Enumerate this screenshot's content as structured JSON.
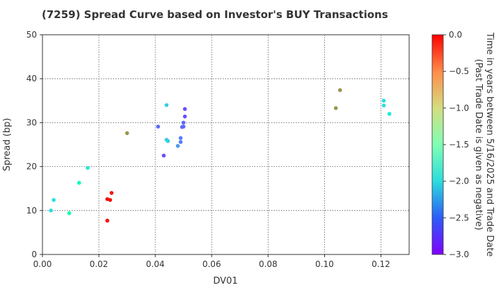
{
  "chart_data": {
    "type": "scatter",
    "title": "(7259)   Spread Curve based on Investor's BUY Transactions",
    "xlabel": "DV01",
    "ylabel": "Spread (bp)",
    "xlim": [
      0.0,
      0.13
    ],
    "ylim": [
      0,
      50
    ],
    "x_ticks": [
      0.0,
      0.02,
      0.04,
      0.06,
      0.08,
      0.1,
      0.12
    ],
    "x_tick_labels": [
      "0.00",
      "0.02",
      "0.04",
      "0.06",
      "0.08",
      "0.10",
      "0.12"
    ],
    "y_ticks": [
      0,
      10,
      20,
      30,
      40,
      50
    ],
    "y_tick_labels": [
      "0",
      "10",
      "20",
      "30",
      "40",
      "50"
    ],
    "grid": true,
    "colorbar": {
      "label_line1": "Time in years between 5/16/2025 and Trade Date",
      "label_line2": "(Past Trade Date is given as negative)",
      "range": [
        -3.0,
        0.0
      ],
      "ticks": [
        0.0,
        -0.5,
        -1.0,
        -1.5,
        -2.0,
        -2.5,
        -3.0
      ],
      "tick_labels": [
        "0.0",
        "−0.5",
        "−1.0",
        "−1.5",
        "−2.0",
        "−2.5",
        "−3.0"
      ],
      "colormap": "rainbow"
    },
    "points": [
      {
        "x": 0.003,
        "y": 10.0,
        "c": -2.0
      },
      {
        "x": 0.004,
        "y": 12.4,
        "c": -2.0
      },
      {
        "x": 0.0095,
        "y": 9.4,
        "c": -1.4
      },
      {
        "x": 0.013,
        "y": 16.3,
        "c": -1.6
      },
      {
        "x": 0.016,
        "y": 19.7,
        "c": -1.9
      },
      {
        "x": 0.023,
        "y": 7.7,
        "c": -0.05
      },
      {
        "x": 0.023,
        "y": 12.6,
        "c": -0.05
      },
      {
        "x": 0.024,
        "y": 12.4,
        "c": -0.05
      },
      {
        "x": 0.0245,
        "y": 14.0,
        "c": -0.1
      },
      {
        "x": 0.03,
        "y": 27.6,
        "c": -0.6
      },
      {
        "x": 0.041,
        "y": 29.1,
        "c": -2.6
      },
      {
        "x": 0.043,
        "y": 22.5,
        "c": -2.7
      },
      {
        "x": 0.044,
        "y": 34.0,
        "c": -2.1
      },
      {
        "x": 0.044,
        "y": 26.1,
        "c": -2.1
      },
      {
        "x": 0.0445,
        "y": 25.8,
        "c": -2.1
      },
      {
        "x": 0.048,
        "y": 24.7,
        "c": -2.4
      },
      {
        "x": 0.049,
        "y": 26.5,
        "c": -2.5
      },
      {
        "x": 0.049,
        "y": 25.6,
        "c": -2.5
      },
      {
        "x": 0.0495,
        "y": 29.0,
        "c": -2.6
      },
      {
        "x": 0.05,
        "y": 29.1,
        "c": -2.6
      },
      {
        "x": 0.05,
        "y": 30.0,
        "c": -2.6
      },
      {
        "x": 0.0505,
        "y": 31.4,
        "c": -2.7
      },
      {
        "x": 0.0505,
        "y": 33.1,
        "c": -2.7
      },
      {
        "x": 0.104,
        "y": 33.3,
        "c": -0.6
      },
      {
        "x": 0.1055,
        "y": 37.4,
        "c": -0.6
      },
      {
        "x": 0.121,
        "y": 35.0,
        "c": -2.0
      },
      {
        "x": 0.121,
        "y": 33.9,
        "c": -2.0
      },
      {
        "x": 0.123,
        "y": 32.0,
        "c": -1.9
      }
    ]
  }
}
